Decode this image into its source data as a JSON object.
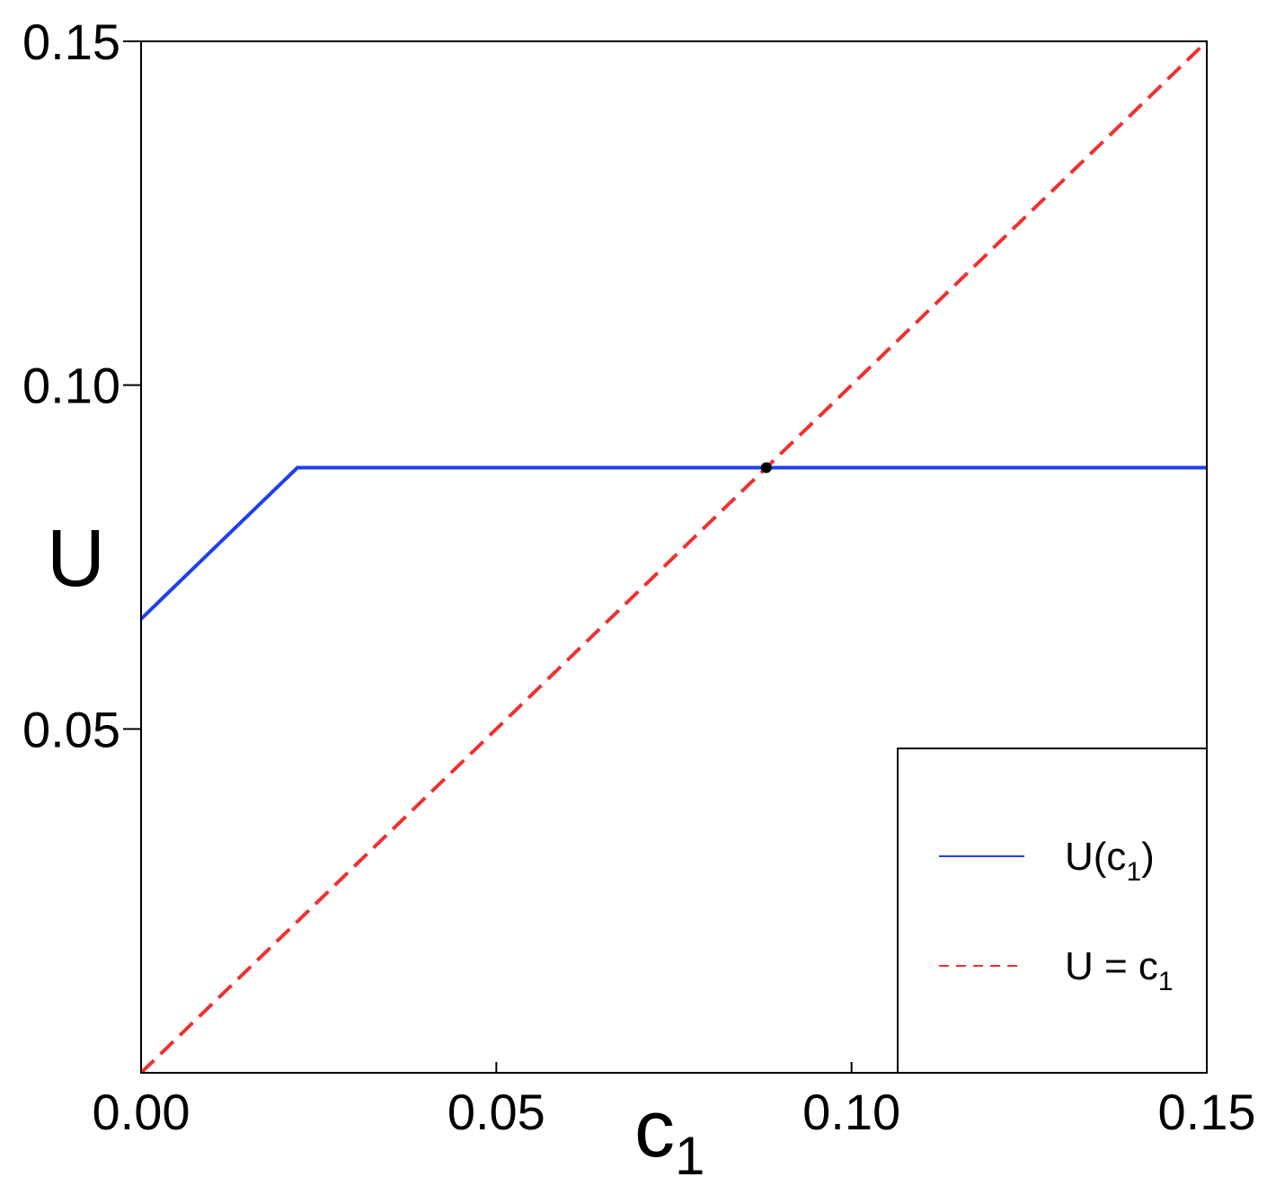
{
  "chart_data": {
    "type": "line",
    "xlabel": "c",
    "xlabel_sub": "1",
    "ylabel": "U",
    "xlim": [
      0,
      0.15
    ],
    "ylim": [
      0,
      0.15
    ],
    "xticks": [
      0,
      0.05,
      0.1,
      0.15
    ],
    "xtick_labels": [
      "0.00",
      "0.05",
      "0.10",
      "0.15"
    ],
    "yticks": [
      0.05,
      0.1,
      0.15
    ],
    "ytick_labels": [
      "0.05",
      "0.10",
      "0.15"
    ],
    "grid": false,
    "legend_position": "bottom-right",
    "series": [
      {
        "name": "U(c1)",
        "legend_main": "U(c",
        "legend_sub": "1",
        "legend_tail": ")",
        "color": "#1f3ff0",
        "style": "solid",
        "x": [
          0,
          0.022,
          0.15
        ],
        "y": [
          0.066,
          0.088,
          0.088
        ]
      },
      {
        "name": "U = c1",
        "legend_main": "U = c",
        "legend_sub": "1",
        "legend_tail": "",
        "color": "#f03030",
        "style": "dashed",
        "x": [
          0,
          0.15
        ],
        "y": [
          0,
          0.15
        ]
      }
    ],
    "marker": {
      "x": 0.088,
      "y": 0.088,
      "color": "#000000"
    }
  }
}
